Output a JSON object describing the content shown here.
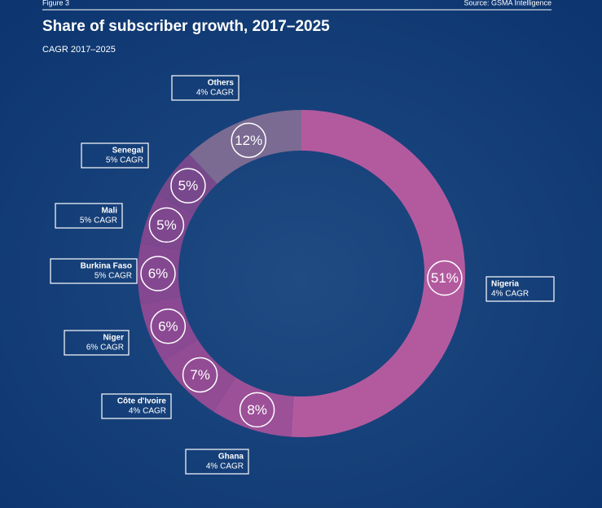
{
  "chart_data": {
    "type": "donut",
    "figure_label": "Figure 3",
    "source": "Source: GSMA Intelligence",
    "title": "Share of subscriber growth, 2017–2025",
    "subtitle": "CAGR 2017–2025",
    "categories": [
      "Nigeria",
      "Ghana",
      "Côte d'Ivoire",
      "Niger",
      "Burkina Faso",
      "Mali",
      "Senegal",
      "Others"
    ],
    "values": [
      51,
      8,
      7,
      6,
      6,
      5,
      5,
      12
    ],
    "value_labels": [
      "51%",
      "8%",
      "7%",
      "6%",
      "6%",
      "5%",
      "5%",
      "12%"
    ],
    "cagr_labels": [
      "4% CAGR",
      "4% CAGR",
      "4% CAGR",
      "6% CAGR",
      "5% CAGR",
      "5% CAGR",
      "5% CAGR",
      "4% CAGR"
    ],
    "colors": [
      "#b35a9f",
      "#9c5098",
      "#924c94",
      "#8a4992",
      "#844890",
      "#7e478e",
      "#78488c",
      "#7b6b92"
    ]
  }
}
